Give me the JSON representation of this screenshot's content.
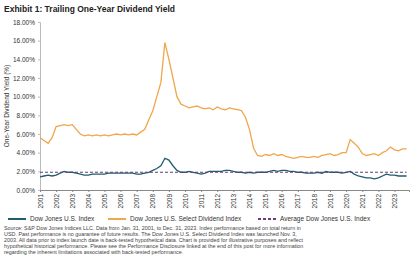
{
  "chart_data": {
    "type": "line",
    "title": "Exhibit 1: Trailing One-Year Dividend Yield",
    "y_label": "One-Year Dividend Yield (%)",
    "x": [
      2001,
      2001.25,
      2001.5,
      2001.75,
      2002,
      2002.25,
      2002.5,
      2002.75,
      2003,
      2003.25,
      2003.5,
      2003.75,
      2004,
      2004.25,
      2004.5,
      2004.75,
      2005,
      2005.25,
      2005.5,
      2005.75,
      2006,
      2006.25,
      2006.5,
      2006.75,
      2007,
      2007.25,
      2007.5,
      2007.75,
      2008,
      2008.25,
      2008.5,
      2008.75,
      2009,
      2009.25,
      2009.5,
      2009.75,
      2010,
      2010.25,
      2010.5,
      2010.75,
      2011,
      2011.25,
      2011.5,
      2011.75,
      2012,
      2012.25,
      2012.5,
      2012.75,
      2013,
      2013.25,
      2013.5,
      2013.75,
      2014,
      2014.25,
      2014.5,
      2014.75,
      2015,
      2015.25,
      2015.5,
      2015.75,
      2016,
      2016.25,
      2016.5,
      2016.75,
      2017,
      2017.25,
      2017.5,
      2017.75,
      2018,
      2018.25,
      2018.5,
      2018.75,
      2019,
      2019.25,
      2019.5,
      2019.75,
      2020,
      2020.25,
      2020.5,
      2020.75,
      2021,
      2021.25,
      2021.5,
      2021.75,
      2022,
      2022.25,
      2022.5,
      2022.75,
      2023,
      2023.25,
      2023.5,
      2023.75
    ],
    "series": [
      {
        "name": "Dow Jones U.S. Select Dividend Index",
        "color": "#f0a64a",
        "line_style": "solid",
        "values": [
          5.6,
          5.3,
          5.0,
          5.6,
          6.8,
          6.9,
          7.0,
          6.9,
          7.0,
          6.5,
          6.0,
          5.8,
          5.9,
          5.8,
          5.9,
          5.8,
          5.9,
          5.8,
          5.9,
          6.0,
          5.9,
          6.0,
          5.9,
          6.0,
          5.9,
          6.2,
          6.5,
          7.5,
          8.5,
          10.0,
          11.5,
          15.8,
          14.0,
          12.0,
          10.0,
          9.2,
          9.0,
          8.8,
          8.9,
          9.0,
          8.8,
          8.7,
          8.8,
          8.6,
          8.9,
          8.7,
          8.6,
          8.8,
          8.7,
          8.6,
          8.5,
          7.8,
          6.5,
          4.5,
          3.7,
          3.6,
          3.8,
          3.7,
          3.9,
          3.7,
          3.8,
          3.6,
          3.5,
          3.4,
          3.5,
          3.6,
          3.5,
          3.5,
          3.6,
          3.5,
          3.7,
          3.8,
          3.9,
          3.7,
          3.8,
          4.0,
          4.0,
          5.4,
          5.0,
          4.6,
          3.9,
          3.7,
          3.8,
          3.9,
          3.7,
          4.0,
          4.2,
          4.6,
          4.3,
          4.2,
          4.4,
          4.4
        ]
      },
      {
        "name": "Dow Jones U.S. Index",
        "color": "#1f5c6e",
        "line_style": "solid",
        "values": [
          1.4,
          1.5,
          1.6,
          1.5,
          1.6,
          1.8,
          2.0,
          1.9,
          1.9,
          1.8,
          1.7,
          1.6,
          1.6,
          1.7,
          1.7,
          1.7,
          1.7,
          1.8,
          1.8,
          1.8,
          1.8,
          1.8,
          1.8,
          1.8,
          1.7,
          1.7,
          1.8,
          1.9,
          2.1,
          2.3,
          2.6,
          3.4,
          3.2,
          2.6,
          2.1,
          1.9,
          1.9,
          2.0,
          1.9,
          1.8,
          1.7,
          1.8,
          2.0,
          2.0,
          2.0,
          2.0,
          2.1,
          2.1,
          2.0,
          1.9,
          1.9,
          1.8,
          1.9,
          1.8,
          1.9,
          1.9,
          1.9,
          2.0,
          2.1,
          2.0,
          2.1,
          2.1,
          2.0,
          2.0,
          1.9,
          1.9,
          1.8,
          1.8,
          1.8,
          1.9,
          1.8,
          2.0,
          1.9,
          1.9,
          1.9,
          1.8,
          1.9,
          2.0,
          1.7,
          1.5,
          1.4,
          1.3,
          1.3,
          1.2,
          1.3,
          1.5,
          1.7,
          1.6,
          1.6,
          1.5,
          1.5,
          1.5
        ]
      },
      {
        "name": "Average Dow Jones U.S. Index",
        "color": "#6a3d7a",
        "line_style": "dashed",
        "values": [
          1.9,
          1.9,
          1.9,
          1.9,
          1.9,
          1.9,
          1.9,
          1.9,
          1.9,
          1.9,
          1.9,
          1.9,
          1.9,
          1.9,
          1.9,
          1.9,
          1.9,
          1.9,
          1.9,
          1.9,
          1.9,
          1.9,
          1.9,
          1.9,
          1.9,
          1.9,
          1.9,
          1.9,
          1.9,
          1.9,
          1.9,
          1.9,
          1.9,
          1.9,
          1.9,
          1.9,
          1.9,
          1.9,
          1.9,
          1.9,
          1.9,
          1.9,
          1.9,
          1.9,
          1.9,
          1.9,
          1.9,
          1.9,
          1.9,
          1.9,
          1.9,
          1.9,
          1.9,
          1.9,
          1.9,
          1.9,
          1.9,
          1.9,
          1.9,
          1.9,
          1.9,
          1.9,
          1.9,
          1.9,
          1.9,
          1.9,
          1.9,
          1.9,
          1.9,
          1.9,
          1.9,
          1.9,
          1.9,
          1.9,
          1.9,
          1.9,
          1.9,
          1.9,
          1.9,
          1.9,
          1.9,
          1.9,
          1.9,
          1.9,
          1.9,
          1.9,
          1.9,
          1.9,
          1.9,
          1.9,
          1.9,
          1.9
        ]
      }
    ],
    "xlim": [
      2001,
      2023.9
    ],
    "xticks": [
      2001,
      2002,
      2003,
      2004,
      2005,
      2006,
      2007,
      2008,
      2009,
      2010,
      2011,
      2012,
      2013,
      2014,
      2015,
      2016,
      2017,
      2018,
      2019,
      2020,
      2021,
      2022,
      2023
    ],
    "ylim": [
      0,
      18
    ],
    "yticks": [
      {
        "value": 0,
        "label": "0.00%"
      },
      {
        "value": 2,
        "label": "2.00%"
      },
      {
        "value": 4,
        "label": "4.00%"
      },
      {
        "value": 6,
        "label": "6.00%"
      },
      {
        "value": 8,
        "label": "8.00%"
      },
      {
        "value": 10,
        "label": "10.00%"
      },
      {
        "value": 12,
        "label": "12.00%"
      },
      {
        "value": 14,
        "label": "14.00%"
      },
      {
        "value": 16,
        "label": "16.00%"
      },
      {
        "value": 18,
        "label": "18.00%"
      }
    ],
    "grid": false,
    "legend": "bottom",
    "notes": [
      "Source: S&P Dow Jones Indices LLC. Data from Jan. 31, 2001, to Dec. 31, 2023. Index performance based on total return in",
      "USD. Past performance is no guarantee of future results. The Dow Jones U.S. Select Dividend Index was launched Nov. 3,",
      "2003. All data prior to index launch date is back-tested hypothetical data. Chart is provided for illustrative purposes and reflect",
      "hypothetical historical performance. Please see the Performance Disclosure linked at the end of this post for more information",
      "regarding the inherent limitations associated with back-tested performance."
    ]
  }
}
